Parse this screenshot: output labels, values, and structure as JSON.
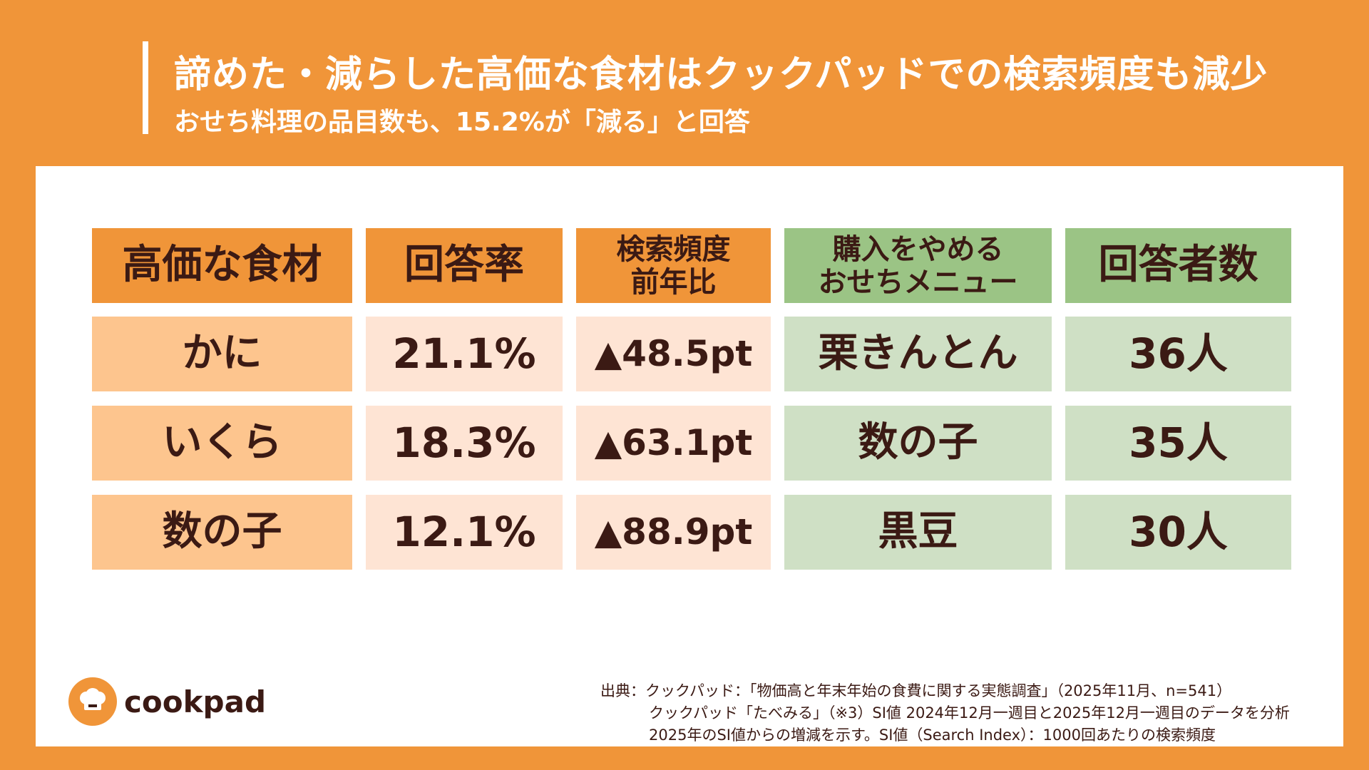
{
  "header": {
    "title": "諦めた・減らした高価な食材はクックパッドでの検索頻度も減少",
    "subtitle": "おせち料理の品目数も、15.2%が「減る」と回答"
  },
  "table": {
    "headers": [
      "高価な食材",
      "回答率",
      "検索頻度\n前年比",
      "購入をやめる\nおせちメニュー",
      "回答者数"
    ],
    "rows": [
      [
        "かに",
        "21.1%",
        "▲48.5pt",
        "栗きんとん",
        "36人"
      ],
      [
        "いくら",
        "18.3%",
        "▲63.1pt",
        "数の子",
        "35人"
      ],
      [
        "数の子",
        "12.1%",
        "▲88.9pt",
        "黒豆",
        "30人"
      ]
    ]
  },
  "footer": {
    "logo_text": "cookpad",
    "source_lines": [
      "出典：クックパッド：「物価高と年末年始の食費に関する実態調査」（2025年11月、n=541）",
      "クックパッド「たべみる」（※3）SI値 2024年12月一週目と2025年12月一週目のデータを分析",
      "2025年のSI値からの増減を示す。SI値（Search Index）：1000回あたりの検索頻度"
    ]
  },
  "colors": {
    "background": "#F09539",
    "header_orange": "#F09539",
    "header_green": "#9BC485",
    "cell_peach": "#FDC58E",
    "cell_light": "#FEE4D4",
    "cell_green": "#CFE0C5",
    "text_dark": "#3B1A14"
  }
}
